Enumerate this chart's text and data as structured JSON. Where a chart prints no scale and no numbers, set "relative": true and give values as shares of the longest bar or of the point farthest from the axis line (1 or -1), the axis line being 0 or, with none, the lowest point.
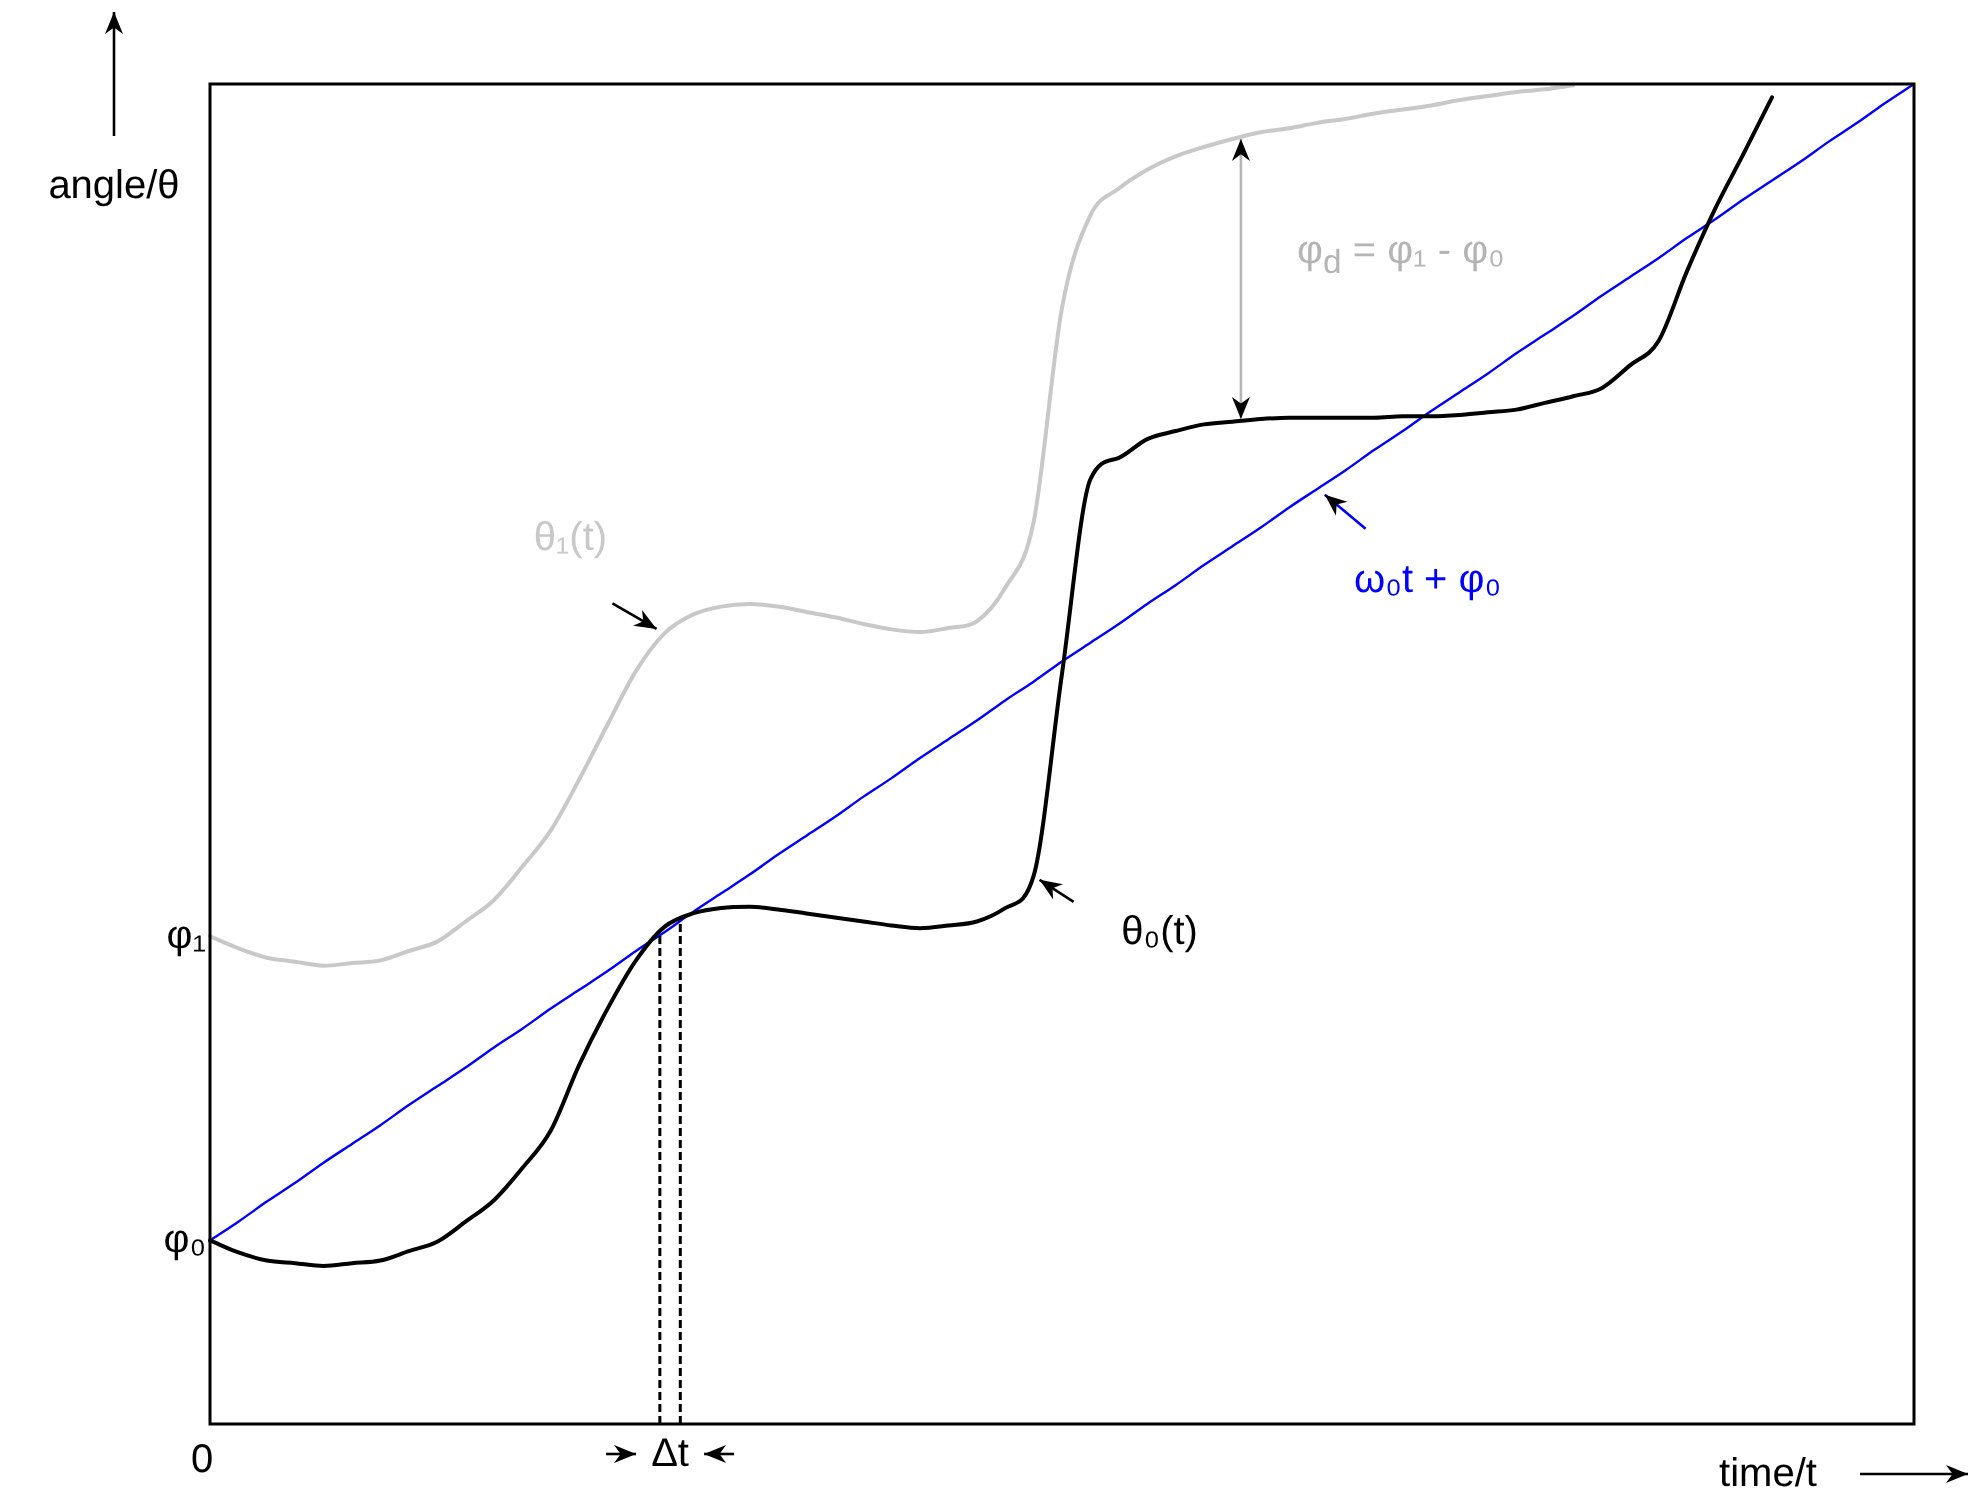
{
  "chart_data": {
    "type": "line",
    "relative": true,
    "xlabel": "time/t",
    "ylabel": "angle/θ",
    "categories": [
      null,
      null,
      null,
      null,
      null,
      null,
      null,
      null,
      null,
      null,
      null,
      null,
      null,
      null,
      null,
      null,
      null,
      null,
      null,
      null,
      null,
      null,
      null,
      null,
      null,
      null,
      null,
      null,
      null,
      null,
      null,
      null,
      null,
      null,
      null,
      null,
      null,
      null,
      null,
      null,
      null,
      null,
      null,
      null,
      null,
      null,
      null,
      null,
      null,
      null,
      null,
      null,
      null,
      null,
      null,
      null,
      null,
      null,
      null,
      null,
      null
    ],
    "series": [
      {
        "name": "θ₀(t)",
        "color": "#000000",
        "values": [
          0.137,
          0.128,
          0.122,
          0.12,
          0.118,
          0.12,
          0.122,
          0.129,
          0.136,
          0.151,
          0.167,
          0.191,
          0.219,
          0.268,
          0.31,
          0.346,
          0.371,
          0.381,
          0.385,
          0.386,
          0.384,
          0.381,
          0.378,
          0.375,
          0.372,
          0.37,
          0.372,
          0.375,
          0.385,
          0.409,
          0.56,
          0.705,
          0.721,
          0.735,
          0.741,
          0.746,
          0.748,
          0.75,
          0.751,
          0.751,
          0.751,
          0.751,
          0.752,
          0.752,
          0.753,
          0.755,
          0.757,
          0.762,
          0.767,
          0.773,
          0.79,
          0.808,
          0.86,
          0.907,
          0.948,
          0.99,
          null,
          null,
          null,
          null,
          null
        ]
      },
      {
        "name": "θ₁(t)",
        "color": "#c8c8c8",
        "values": [
          0.364,
          0.355,
          0.348,
          0.345,
          0.342,
          0.344,
          0.346,
          0.353,
          0.36,
          0.375,
          0.391,
          0.416,
          0.443,
          0.481,
          0.522,
          0.562,
          0.59,
          0.604,
          0.61,
          0.612,
          0.61,
          0.606,
          0.602,
          0.597,
          0.593,
          0.591,
          0.594,
          0.599,
          0.624,
          0.673,
          0.833,
          0.902,
          0.922,
          0.936,
          0.946,
          0.953,
          0.959,
          0.964,
          0.967,
          0.971,
          0.974,
          0.978,
          0.981,
          0.984,
          0.988,
          0.991,
          0.994,
          0.996,
          0.999,
          null,
          null,
          null,
          null,
          null,
          null,
          null,
          null,
          null,
          null,
          null,
          null
        ]
      },
      {
        "name": "ω₀t + φ₀",
        "color": "#0000ff",
        "values": [
          0.137,
          0.151,
          0.166,
          0.18,
          0.195,
          0.209,
          0.223,
          0.238,
          0.252,
          0.266,
          0.281,
          0.295,
          0.31,
          0.324,
          0.338,
          0.353,
          0.367,
          0.382,
          0.396,
          0.41,
          0.425,
          0.439,
          0.453,
          0.468,
          0.482,
          0.497,
          0.511,
          0.525,
          0.54,
          0.554,
          0.569,
          0.583,
          0.597,
          0.612,
          0.626,
          0.641,
          0.655,
          0.669,
          0.684,
          0.698,
          0.712,
          0.727,
          0.741,
          0.756,
          0.77,
          0.784,
          0.799,
          0.813,
          0.827,
          0.842,
          0.856,
          0.87,
          0.885,
          0.899,
          0.914,
          0.928,
          0.942,
          0.957,
          0.971,
          0.986,
          1
        ]
      }
    ],
    "annotations": [
      "0",
      "φ$_{d}$ = φ₁ - φ₀",
      "φ₁",
      "φ₀",
      "Δt"
    ]
  }
}
